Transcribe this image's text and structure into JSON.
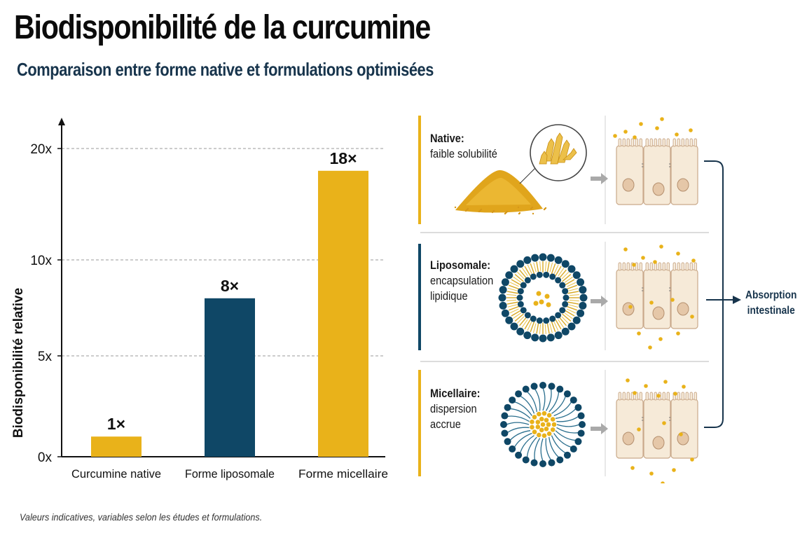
{
  "header": {
    "title": "Biodisponibilité de la curcumine",
    "subtitle": "Comparaison entre forme native et formulations optimisées"
  },
  "footnote": "Valeurs indicatives, variables selon les études et formulations.",
  "colors": {
    "gold": "#e9b21a",
    "navy": "#0f4766",
    "title_text": "#0b0b0b",
    "subtitle_text": "#17344c",
    "gridline": "#999999"
  },
  "chart_data": {
    "type": "bar",
    "title": "",
    "ylabel": "Biodisponibilité relative",
    "xlabel": "",
    "categories": [
      "Curcumine native",
      "Forme liposomale",
      "Forme micellaire"
    ],
    "values": [
      1,
      8,
      18
    ],
    "value_labels": [
      "1×",
      "8×",
      "18×"
    ],
    "bar_colors": [
      "#e9b21a",
      "#0f4766",
      "#e9b21a"
    ],
    "yticks": [
      {
        "value": 0,
        "label": "0x"
      },
      {
        "value": 5,
        "label": "5x"
      },
      {
        "value": 10,
        "label": "10x"
      },
      {
        "value": 20,
        "label": "20x"
      }
    ],
    "ylim": [
      0,
      20
    ],
    "grid": true,
    "legend": "none"
  },
  "diagram": {
    "panels": [
      {
        "id": "native",
        "name": "Native:",
        "description": [
          "faible solubilité"
        ],
        "accent": "#e9b21a",
        "icon": "powder-crystals-icon"
      },
      {
        "id": "liposomale",
        "name": "Liposomale:",
        "description": [
          "encapsulation",
          "lipidique"
        ],
        "accent": "#0f4766",
        "icon": "liposome-icon"
      },
      {
        "id": "micellaire",
        "name": "Micellaire:",
        "description": [
          "dispersion",
          "accrue"
        ],
        "accent": "#e9b21a",
        "icon": "micelle-icon"
      }
    ],
    "outcome": "Absorption intestinale",
    "cell_icon": "intestinal-cells-icon",
    "arrow_icon": "arrow-right-icon"
  }
}
